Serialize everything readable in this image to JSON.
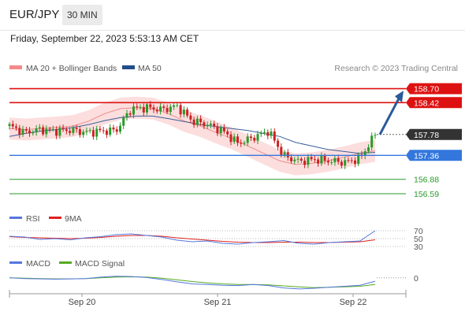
{
  "header": {
    "symbol": "EUR/JPY",
    "timeframe": "30 MIN"
  },
  "timestamp": "Friday, September 22, 2023 5:53:13 AM CET",
  "legend": {
    "bb_label": "MA 20 + Bollinger Bands",
    "ma50_label": "MA 50",
    "credit": "Research © 2023 Trading Central"
  },
  "colors": {
    "resistance": "#dd1111",
    "support": "#3377dd",
    "target": "#2a9a2a",
    "current": "#333333",
    "arrow": "#2a5a9a",
    "rsi": "#5577dd",
    "rsi_ma": "#dd2222",
    "macd": "#5577dd",
    "macd_signal": "#55aa22"
  },
  "chart_data": [
    {
      "type": "line",
      "panel": "price",
      "x_ticks": [
        "Sep 20",
        "Sep 21",
        "Sep 22"
      ],
      "ylim": [
        156.4,
        158.9
      ],
      "levels": [
        {
          "label": "158.70",
          "value": 158.7,
          "kind": "resistance"
        },
        {
          "label": "158.42",
          "value": 158.42,
          "kind": "resistance"
        },
        {
          "label": "157.78",
          "value": 157.78,
          "kind": "current"
        },
        {
          "label": "157.36",
          "value": 157.36,
          "kind": "support"
        },
        {
          "label": "156.88",
          "value": 156.88,
          "kind": "target"
        },
        {
          "label": "156.59",
          "value": 156.59,
          "kind": "target"
        }
      ],
      "series": [
        {
          "name": "MA 20 + Bollinger Bands",
          "role": "ma20",
          "values": [
            157.9,
            157.88,
            157.9,
            157.92,
            157.95,
            158.05,
            158.2,
            158.3,
            158.32,
            158.3,
            158.2,
            158.05,
            157.95,
            157.82,
            157.7,
            157.55,
            157.4,
            157.25,
            157.18,
            157.2,
            157.25,
            157.32,
            157.4,
            157.45
          ]
        },
        {
          "name": "MA 50",
          "role": "ma50",
          "values": [
            157.74,
            157.8,
            157.85,
            157.88,
            157.92,
            157.98,
            158.06,
            158.12,
            158.15,
            158.15,
            158.1,
            158.04,
            157.98,
            157.94,
            157.9,
            157.86,
            157.8,
            157.74,
            157.62,
            157.55,
            157.48,
            157.44,
            157.4,
            157.42
          ]
        },
        {
          "name": "Close",
          "role": "price",
          "values": [
            157.95,
            157.82,
            157.88,
            157.85,
            157.87,
            157.82,
            157.85,
            157.86,
            158.3,
            158.32,
            158.28,
            158.35,
            158.05,
            157.98,
            157.85,
            157.6,
            157.72,
            157.85,
            157.35,
            157.24,
            157.28,
            157.25,
            157.22,
            157.3,
            157.78
          ]
        }
      ]
    },
    {
      "type": "line",
      "panel": "rsi",
      "ylim": [
        20,
        80
      ],
      "y_ticks": [
        "70",
        "50",
        "30"
      ],
      "y_tick_values": [
        70,
        50,
        30
      ],
      "legend": [
        "RSI",
        "9MA"
      ],
      "series": [
        {
          "name": "RSI",
          "values": [
            56,
            54,
            48,
            50,
            47,
            52,
            55,
            60,
            62,
            58,
            54,
            46,
            42,
            44,
            38,
            36,
            40,
            42,
            45,
            38,
            36,
            40,
            42,
            44,
            70
          ]
        },
        {
          "name": "9MA",
          "values": [
            55,
            53,
            52,
            51,
            50,
            51,
            53,
            56,
            58,
            58,
            56,
            52,
            49,
            46,
            43,
            41,
            40,
            40,
            41,
            41,
            40,
            40,
            41,
            42,
            47
          ]
        }
      ]
    },
    {
      "type": "line",
      "panel": "macd",
      "ylim": [
        -0.45,
        0.3
      ],
      "y_ticks": [
        "0"
      ],
      "y_tick_values": [
        0
      ],
      "legend": [
        "MACD",
        "MACD Signal"
      ],
      "series": [
        {
          "name": "MACD",
          "values": [
            0.0,
            -0.02,
            -0.03,
            -0.04,
            -0.03,
            -0.02,
            0.02,
            0.05,
            0.04,
            0.01,
            -0.05,
            -0.12,
            -0.18,
            -0.2,
            -0.22,
            -0.23,
            -0.2,
            -0.23,
            -0.3,
            -0.33,
            -0.31,
            -0.28,
            -0.25,
            -0.22,
            -0.1
          ]
        },
        {
          "name": "MACD Signal",
          "values": [
            0.0,
            -0.01,
            -0.02,
            -0.03,
            -0.03,
            -0.02,
            0.0,
            0.02,
            0.03,
            0.02,
            -0.01,
            -0.06,
            -0.11,
            -0.15,
            -0.18,
            -0.2,
            -0.2,
            -0.21,
            -0.24,
            -0.27,
            -0.29,
            -0.28,
            -0.27,
            -0.25,
            -0.2
          ]
        }
      ]
    }
  ]
}
